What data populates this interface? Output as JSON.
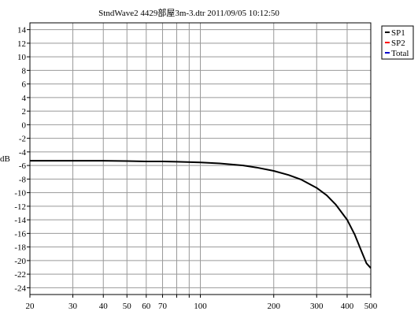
{
  "chart_data": {
    "type": "line",
    "title": "StndWave2  4429部屋3m-3.dtr     2011/09/05 10:12:50",
    "xlabel": "",
    "ylabel": "dB",
    "x_scale": "log",
    "xlim": [
      20,
      500
    ],
    "ylim": [
      -25,
      15
    ],
    "x_ticks": [
      20,
      30,
      40,
      50,
      60,
      70,
      100,
      200,
      300,
      400,
      500
    ],
    "x_ticks_minor": [
      80,
      90
    ],
    "y_ticks": [
      14,
      12,
      10,
      8,
      6,
      4,
      2,
      0,
      -2,
      -4,
      -6,
      -8,
      -10,
      -12,
      -14,
      -16,
      -18,
      -20,
      -22,
      -24
    ],
    "grid": true,
    "legend_position": "right",
    "legend": [
      {
        "name": "SP1",
        "color": "#000000"
      },
      {
        "name": "SP2",
        "color": "#ff0000"
      },
      {
        "name": "Total",
        "color": "#0000cc"
      }
    ],
    "series": [
      {
        "name": "Total",
        "color": "#000000",
        "x": [
          20,
          30,
          40,
          50,
          60,
          70,
          80,
          100,
          120,
          150,
          170,
          200,
          230,
          260,
          300,
          330,
          360,
          400,
          430,
          460,
          480,
          500
        ],
        "y": [
          -5.3,
          -5.3,
          -5.3,
          -5.35,
          -5.4,
          -5.4,
          -5.45,
          -5.55,
          -5.7,
          -6.0,
          -6.3,
          -6.8,
          -7.4,
          -8.1,
          -9.3,
          -10.4,
          -11.8,
          -14.0,
          -16.2,
          -18.8,
          -20.4,
          -21.1
        ]
      }
    ]
  }
}
